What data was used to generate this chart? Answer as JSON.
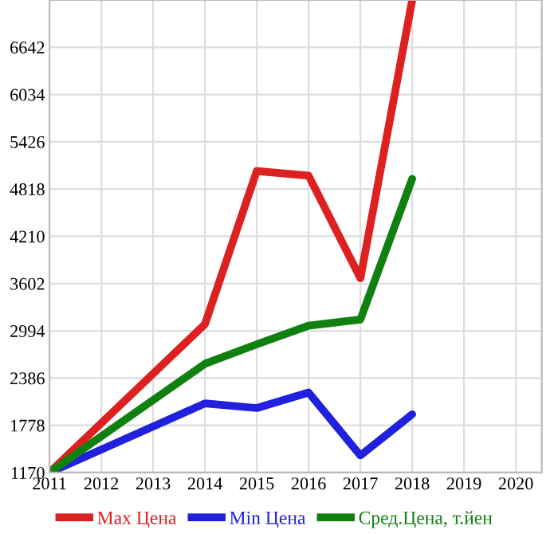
{
  "chart_data": {
    "type": "line",
    "x": [
      2011,
      2014,
      2015,
      2016,
      2017,
      2018
    ],
    "series": [
      {
        "name": "Max Цена",
        "color": "#dd2020",
        "values": [
          1170,
          3080,
          5050,
          4990,
          3670,
          7250
        ]
      },
      {
        "name": "Min Цена",
        "color": "#2020dd",
        "values": [
          1170,
          2060,
          2000,
          2200,
          1390,
          1920
        ]
      },
      {
        "name": "Сред.Цена, т.йен",
        "color": "#108010",
        "values": [
          1170,
          2570,
          2820,
          3060,
          3140,
          4950
        ]
      }
    ],
    "xlim": [
      2011,
      2020.5
    ],
    "xticks": [
      2011,
      2012,
      2013,
      2014,
      2015,
      2016,
      2017,
      2018,
      2019,
      2020
    ],
    "ylim": [
      1170,
      7250
    ],
    "yticks": [
      1170,
      1778,
      2386,
      2994,
      3602,
      4210,
      4818,
      5426,
      6034,
      6642
    ],
    "grid": true,
    "legend": "bottom",
    "marker": "none",
    "line_style": "solid"
  }
}
